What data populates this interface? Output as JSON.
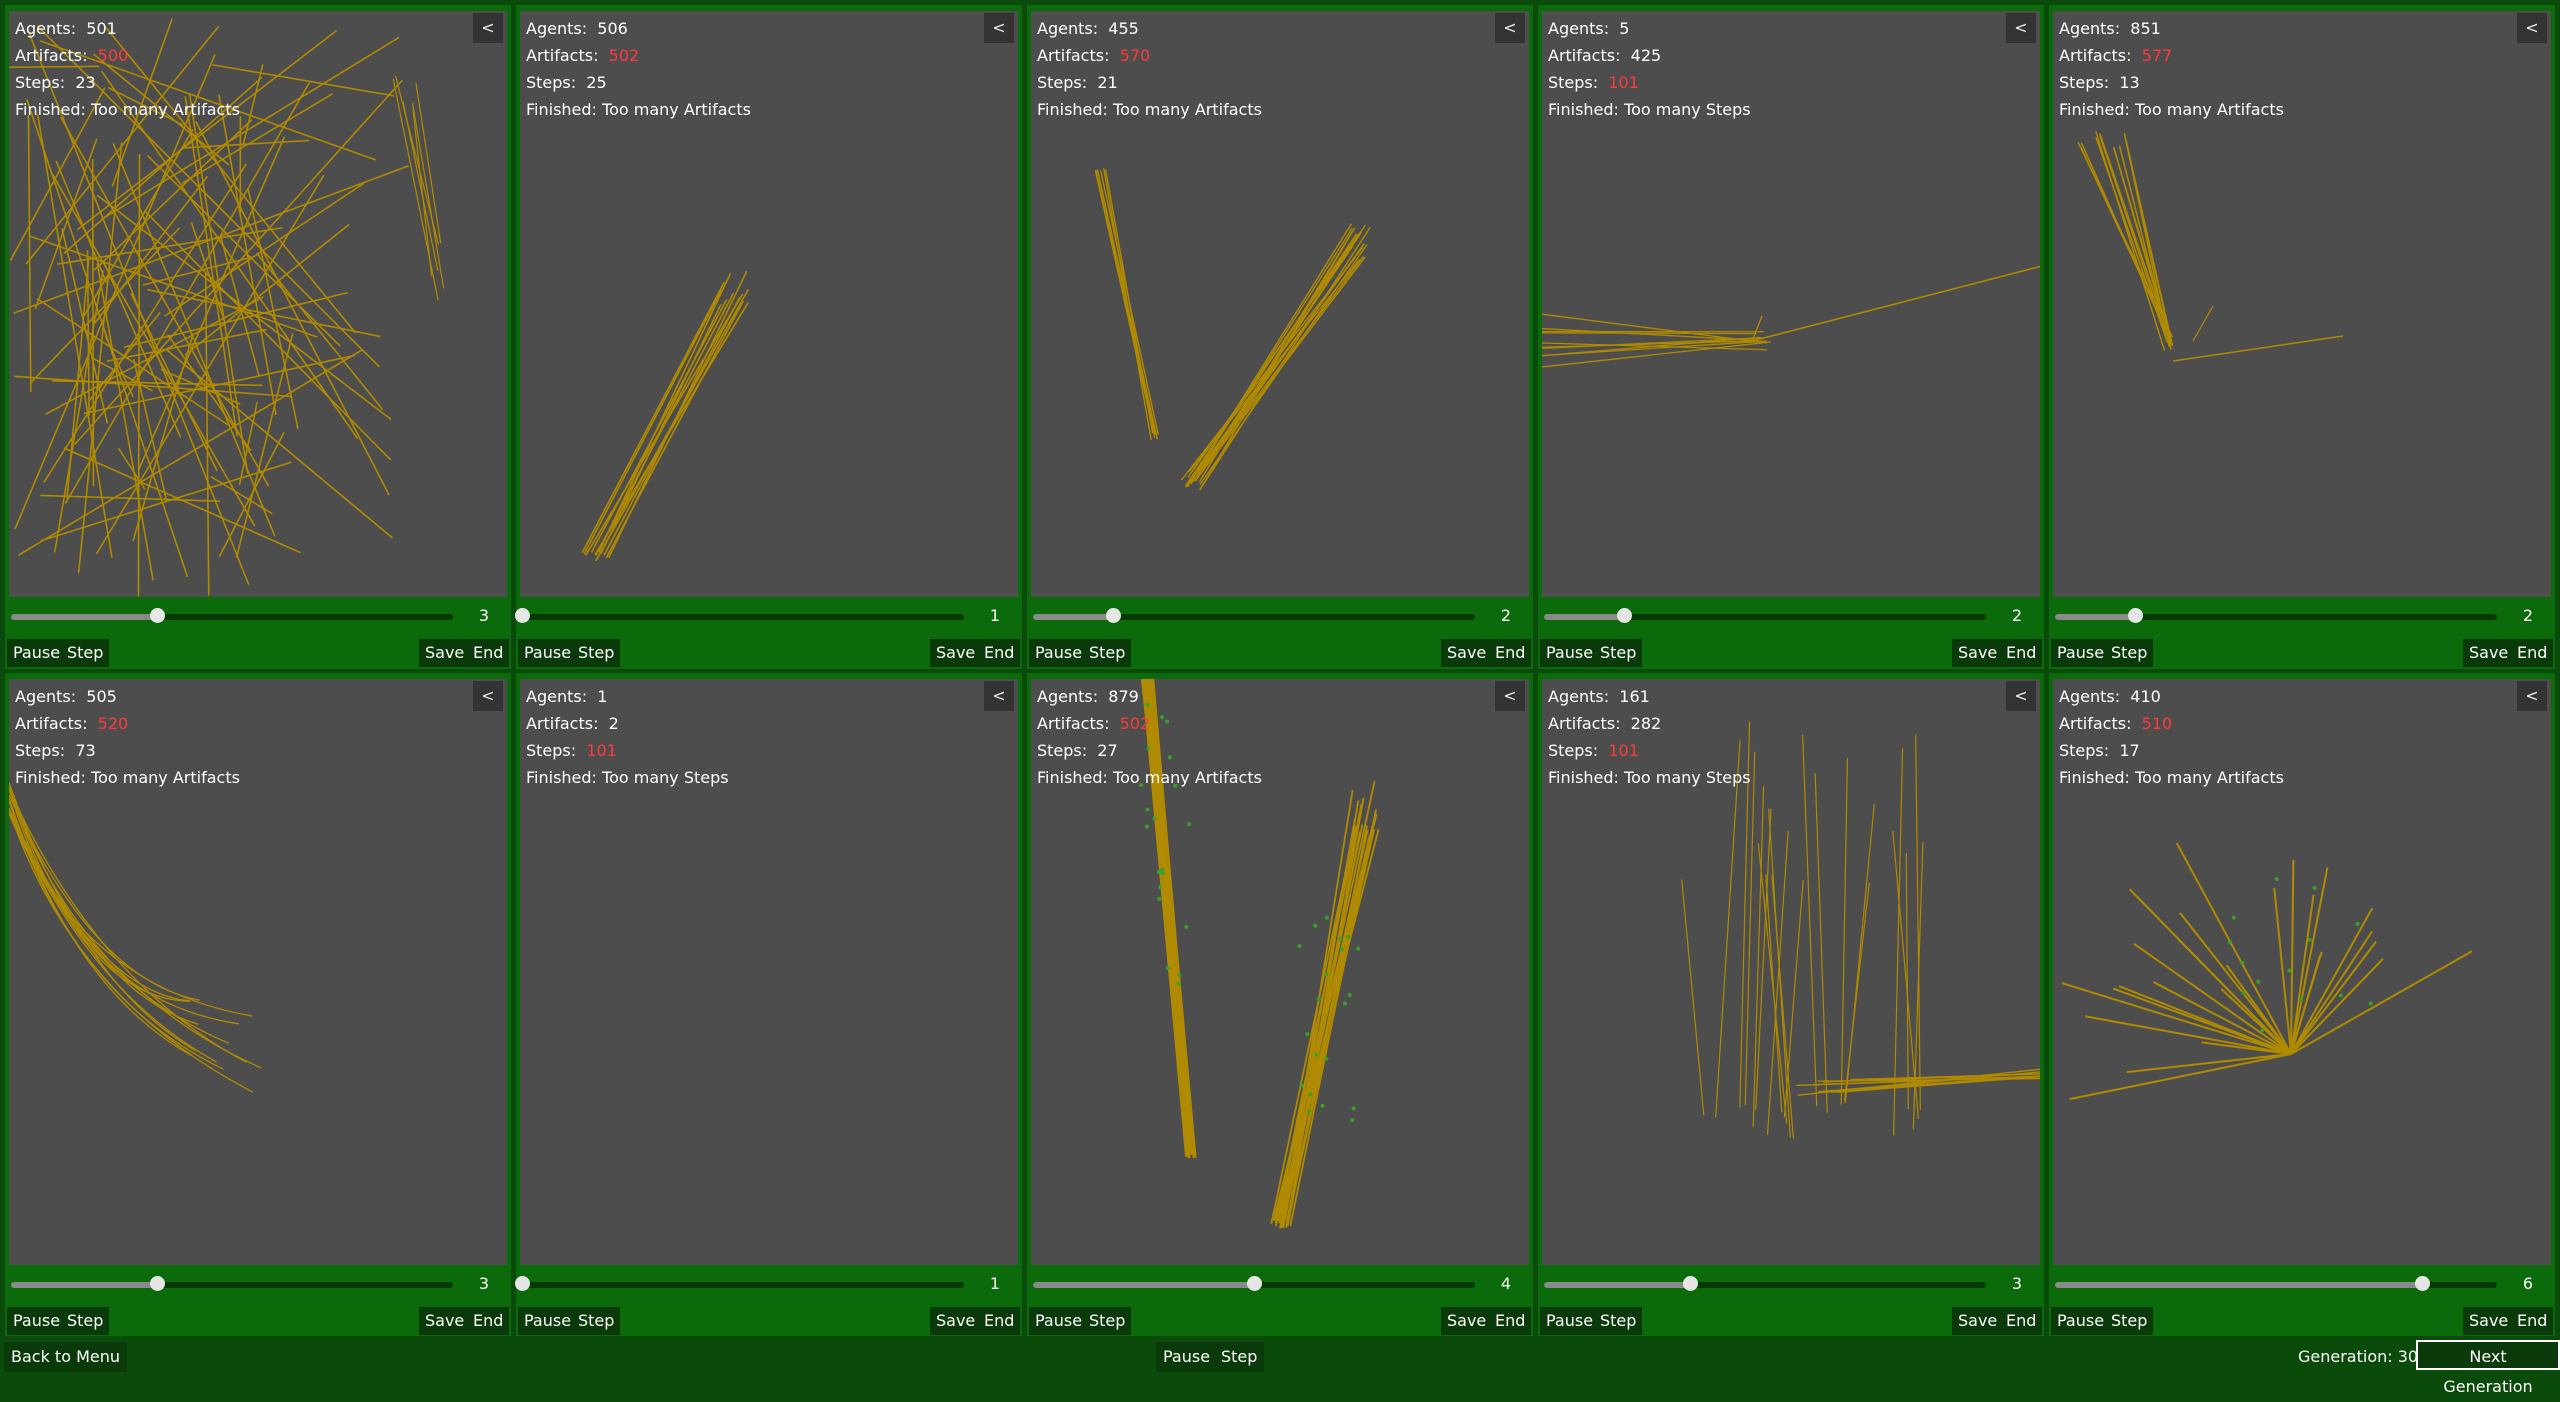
{
  "panels": [
    {
      "agents": "501",
      "artifacts": "500",
      "artifacts_red": true,
      "steps": "23",
      "steps_red": false,
      "finished": "Too many Artifacts",
      "speed": "3",
      "progress": 0.33,
      "seed": 1,
      "density": 90,
      "style": "wild"
    },
    {
      "agents": "506",
      "artifacts": "502",
      "artifacts_red": true,
      "steps": "25",
      "steps_red": false,
      "finished": "Too many Artifacts",
      "speed": "1",
      "progress": 0.0,
      "seed": 2,
      "density": 12,
      "style": "streak"
    },
    {
      "agents": "455",
      "artifacts": "570",
      "artifacts_red": true,
      "steps": "21",
      "steps_red": false,
      "finished": "Too many Artifacts",
      "speed": "2",
      "progress": 0.18,
      "seed": 3,
      "density": 18,
      "style": "vee"
    },
    {
      "agents": "5",
      "artifacts": "425",
      "artifacts_red": false,
      "steps": "101",
      "steps_red": true,
      "finished": "Too many Steps",
      "speed": "2",
      "progress": 0.18,
      "seed": 4,
      "density": 10,
      "style": "horiz"
    },
    {
      "agents": "851",
      "artifacts": "577",
      "artifacts_red": true,
      "steps": "13",
      "steps_red": false,
      "finished": "Too many Artifacts",
      "speed": "2",
      "progress": 0.18,
      "seed": 5,
      "density": 14,
      "style": "drop"
    },
    {
      "agents": "505",
      "artifacts": "520",
      "artifacts_red": true,
      "steps": "73",
      "steps_red": false,
      "finished": "Too many Artifacts",
      "speed": "3",
      "progress": 0.33,
      "seed": 6,
      "density": 14,
      "style": "curve"
    },
    {
      "agents": "1",
      "artifacts": "2",
      "artifacts_red": false,
      "steps": "101",
      "steps_red": true,
      "finished": "Too many Steps",
      "speed": "1",
      "progress": 0.0,
      "seed": 7,
      "density": 0,
      "style": "none"
    },
    {
      "agents": "879",
      "artifacts": "502",
      "artifacts_red": true,
      "steps": "27",
      "steps_red": false,
      "finished": "Too many Artifacts",
      "speed": "4",
      "progress": 0.5,
      "seed": 8,
      "density": 40,
      "style": "twin"
    },
    {
      "agents": "161",
      "artifacts": "282",
      "artifacts_red": false,
      "steps": "101",
      "steps_red": true,
      "finished": "Too many Steps",
      "speed": "3",
      "progress": 0.33,
      "seed": 9,
      "density": 22,
      "style": "bush"
    },
    {
      "agents": "410",
      "artifacts": "510",
      "artifacts_red": true,
      "steps": "17",
      "steps_red": false,
      "finished": "Too many Artifacts",
      "speed": "6",
      "progress": 0.83,
      "seed": 10,
      "density": 26,
      "style": "fan"
    }
  ],
  "labels": {
    "agents": "Agents:",
    "artifacts": "Artifacts:",
    "steps": "Steps:",
    "finished": "Finished:",
    "collapse": "<",
    "pause": "Pause",
    "step": "Step",
    "save": "Save",
    "end": "End"
  },
  "bottom": {
    "back": "Back to Menu",
    "pause": "Pause",
    "step": "Step",
    "generation_label": "Generation:",
    "generation": "30",
    "next": "Next Generation"
  },
  "colors": {
    "trail": "#b08a00",
    "trail_dark": "#8a6a00",
    "green_dot": "#3aa02a",
    "red": "#ff3a3a"
  }
}
